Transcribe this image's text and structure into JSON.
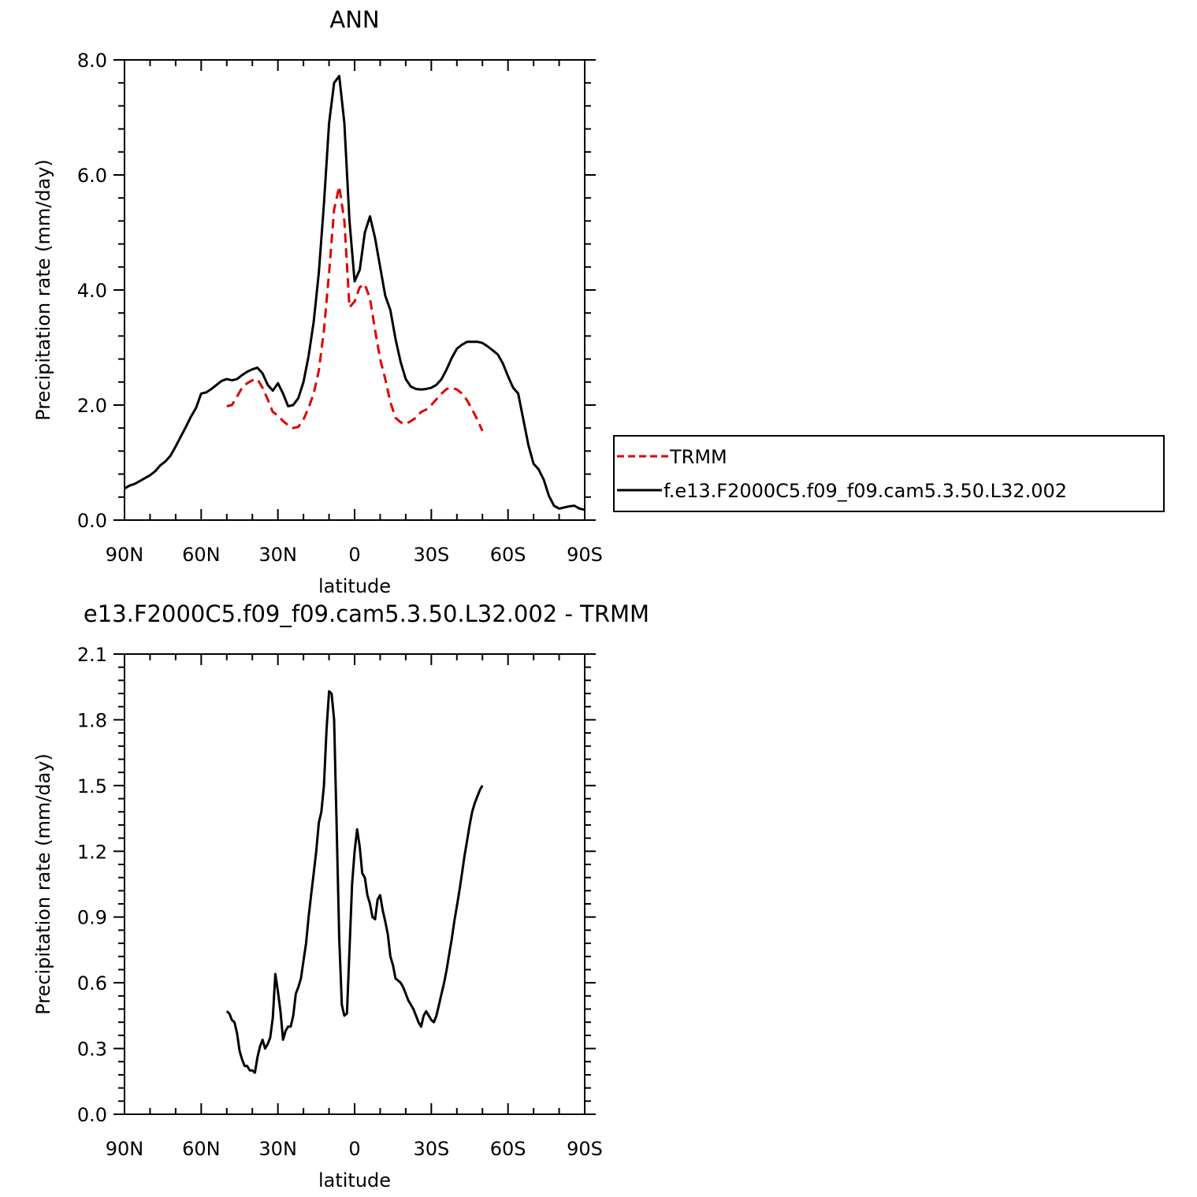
{
  "chart_data": [
    {
      "type": "line",
      "title": "ANN",
      "xlabel": "latitude",
      "ylabel": "Precipitation rate (mm/day)",
      "xlim": [
        90,
        -90
      ],
      "ylim": [
        0,
        8
      ],
      "x_tick_values": [
        90,
        60,
        30,
        0,
        -30,
        -60,
        -90
      ],
      "x_tick_labels": [
        "90N",
        "60N",
        "30N",
        "0",
        "30S",
        "60S",
        "90S"
      ],
      "y_tick_values": [
        0,
        2,
        4,
        6,
        8
      ],
      "y_tick_labels": [
        "0.0",
        "2.0",
        "4.0",
        "6.0",
        "8.0"
      ],
      "legend": {
        "placement": "right"
      },
      "series": [
        {
          "name": "TRMM",
          "color": "#e00000",
          "dash": "dashed",
          "x": [
            50,
            48,
            46,
            44,
            42,
            40,
            38,
            36,
            34,
            32,
            30,
            28,
            26,
            24,
            22,
            20,
            18,
            16,
            14,
            12,
            10,
            8,
            6,
            4,
            2,
            0,
            -2,
            -4,
            -6,
            -8,
            -10,
            -12,
            -14,
            -16,
            -18,
            -20,
            -22,
            -24,
            -26,
            -28,
            -30,
            -32,
            -34,
            -36,
            -38,
            -40,
            -42,
            -44,
            -46,
            -48,
            -50
          ],
          "y": [
            1.98,
            2.0,
            2.15,
            2.3,
            2.38,
            2.43,
            2.45,
            2.3,
            2.1,
            1.88,
            1.82,
            1.72,
            1.65,
            1.6,
            1.62,
            1.75,
            1.95,
            2.2,
            2.6,
            3.3,
            4.3,
            5.4,
            5.8,
            5.2,
            3.7,
            3.8,
            4.05,
            4.1,
            3.85,
            3.3,
            2.8,
            2.45,
            2.05,
            1.78,
            1.7,
            1.67,
            1.72,
            1.78,
            1.88,
            1.92,
            2.0,
            2.1,
            2.2,
            2.28,
            2.3,
            2.27,
            2.2,
            2.08,
            1.92,
            1.75,
            1.55
          ]
        },
        {
          "name": "f.e13.F2000C5.f09_f09.cam5.3.50.L32.002",
          "color": "#000000",
          "dash": "solid",
          "x": [
            90,
            88,
            86,
            84,
            82,
            80,
            78,
            76,
            74,
            72,
            70,
            68,
            66,
            64,
            62,
            60,
            58,
            56,
            54,
            52,
            50,
            48,
            46,
            44,
            42,
            40,
            38,
            36,
            34,
            32,
            30,
            28,
            26,
            24,
            22,
            20,
            18,
            16,
            14,
            12,
            10,
            8,
            6,
            4,
            2,
            0,
            -2,
            -4,
            -6,
            -8,
            -10,
            -12,
            -14,
            -16,
            -18,
            -20,
            -22,
            -24,
            -26,
            -28,
            -30,
            -32,
            -34,
            -36,
            -38,
            -40,
            -42,
            -44,
            -46,
            -48,
            -50,
            -52,
            -54,
            -56,
            -58,
            -60,
            -62,
            -64,
            -66,
            -68,
            -70,
            -72,
            -74,
            -76,
            -78,
            -80,
            -82,
            -84,
            -86,
            -88,
            -90
          ],
          "y": [
            0.55,
            0.6,
            0.63,
            0.68,
            0.73,
            0.78,
            0.85,
            0.95,
            1.02,
            1.12,
            1.28,
            1.45,
            1.62,
            1.8,
            1.95,
            2.2,
            2.22,
            2.28,
            2.35,
            2.42,
            2.45,
            2.43,
            2.45,
            2.52,
            2.58,
            2.62,
            2.65,
            2.55,
            2.35,
            2.25,
            2.38,
            2.2,
            1.98,
            2.0,
            2.12,
            2.4,
            2.85,
            3.45,
            4.3,
            5.5,
            6.9,
            7.6,
            7.72,
            6.9,
            5.2,
            4.15,
            4.35,
            5.0,
            5.28,
            4.9,
            4.4,
            3.9,
            3.65,
            3.15,
            2.75,
            2.45,
            2.32,
            2.28,
            2.27,
            2.28,
            2.3,
            2.35,
            2.45,
            2.62,
            2.82,
            2.98,
            3.05,
            3.1,
            3.1,
            3.1,
            3.08,
            3.02,
            2.95,
            2.88,
            2.72,
            2.5,
            2.3,
            2.2,
            1.75,
            1.3,
            0.98,
            0.88,
            0.7,
            0.42,
            0.25,
            0.2,
            0.22,
            0.24,
            0.25,
            0.2,
            0.18
          ]
        }
      ]
    },
    {
      "type": "line",
      "title": "e13.F2000C5.f09_f09.cam5.3.50.L32.002 - TRMM",
      "xlabel": "latitude",
      "ylabel": "Precipitation rate (mm/day)",
      "xlim": [
        90,
        -90
      ],
      "ylim": [
        0,
        2.1
      ],
      "x_tick_values": [
        90,
        60,
        30,
        0,
        -30,
        -60,
        -90
      ],
      "x_tick_labels": [
        "90N",
        "60N",
        "30N",
        "0",
        "30S",
        "60S",
        "90S"
      ],
      "y_tick_values": [
        0,
        0.3,
        0.6,
        0.9,
        1.2,
        1.5,
        1.8,
        2.1
      ],
      "y_tick_labels": [
        "0.0",
        "0.3",
        "0.6",
        "0.9",
        "1.2",
        "1.5",
        "1.8",
        "2.1"
      ],
      "series": [
        {
          "color": "#000000",
          "dash": "solid",
          "x": [
            50,
            49,
            48,
            47,
            46,
            45,
            44,
            43,
            42,
            41,
            40,
            39,
            38,
            37,
            36,
            35,
            34,
            33,
            32,
            31,
            30,
            29,
            28,
            27,
            26,
            25,
            24,
            23,
            22,
            21,
            20,
            19,
            18,
            17,
            16,
            15,
            14,
            13,
            12,
            11,
            10,
            9,
            8,
            7,
            6,
            5,
            4,
            3,
            2,
            1,
            0,
            -1,
            -2,
            -3,
            -4,
            -5,
            -6,
            -7,
            -8,
            -9,
            -10,
            -11,
            -12,
            -13,
            -14,
            -15,
            -16,
            -17,
            -18,
            -19,
            -20,
            -21,
            -22,
            -23,
            -24,
            -25,
            -26,
            -27,
            -28,
            -29,
            -30,
            -31,
            -32,
            -33,
            -34,
            -35,
            -36,
            -37,
            -38,
            -39,
            -40,
            -41,
            -42,
            -43,
            -44,
            -45,
            -46,
            -47,
            -48,
            -49,
            -50
          ],
          "y": [
            0.47,
            0.46,
            0.43,
            0.42,
            0.37,
            0.29,
            0.25,
            0.22,
            0.22,
            0.2,
            0.2,
            0.19,
            0.26,
            0.31,
            0.34,
            0.3,
            0.32,
            0.35,
            0.44,
            0.64,
            0.56,
            0.47,
            0.34,
            0.38,
            0.4,
            0.4,
            0.45,
            0.55,
            0.58,
            0.62,
            0.7,
            0.78,
            0.9,
            1.0,
            1.1,
            1.2,
            1.33,
            1.38,
            1.5,
            1.75,
            1.93,
            1.92,
            1.8,
            1.3,
            0.8,
            0.5,
            0.45,
            0.46,
            0.75,
            1.05,
            1.2,
            1.3,
            1.22,
            1.1,
            1.08,
            1.0,
            0.96,
            0.9,
            0.89,
            0.98,
            1.0,
            0.93,
            0.88,
            0.82,
            0.72,
            0.68,
            0.62,
            0.61,
            0.6,
            0.58,
            0.55,
            0.52,
            0.5,
            0.48,
            0.45,
            0.42,
            0.4,
            0.45,
            0.47,
            0.45,
            0.43,
            0.42,
            0.45,
            0.5,
            0.55,
            0.6,
            0.66,
            0.73,
            0.8,
            0.88,
            0.95,
            1.02,
            1.1,
            1.18,
            1.25,
            1.32,
            1.38,
            1.42,
            1.45,
            1.48,
            1.5
          ]
        }
      ]
    }
  ]
}
